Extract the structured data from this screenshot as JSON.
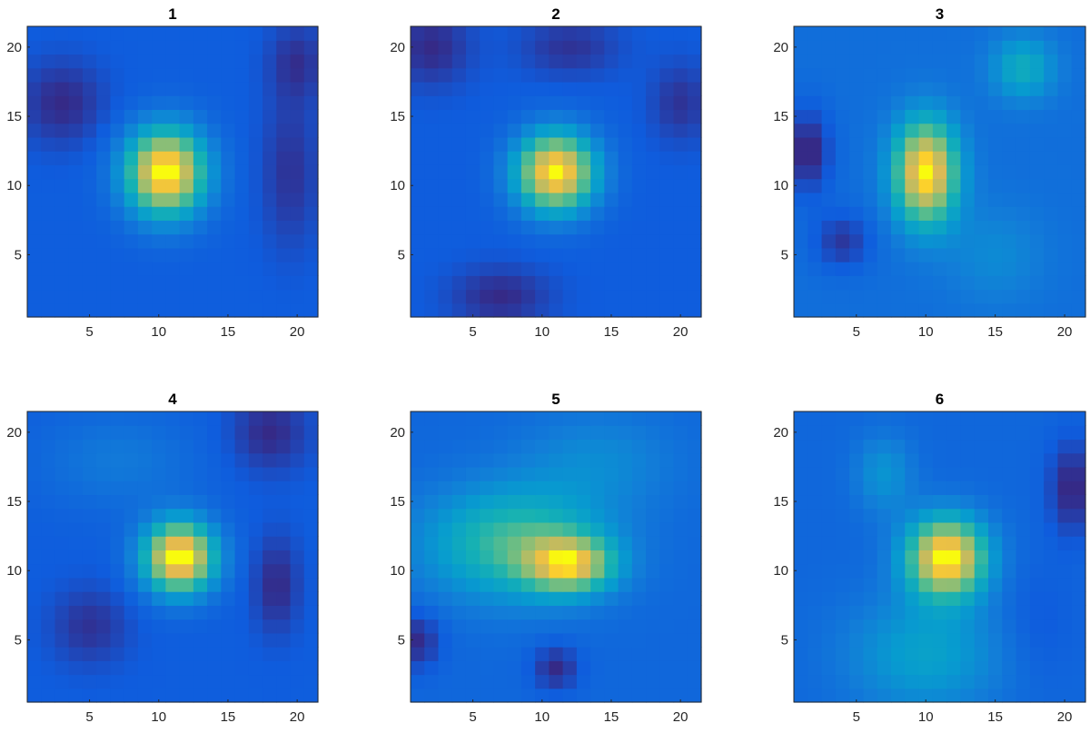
{
  "figure": {
    "background": "#ffffff",
    "colormap": "parula"
  },
  "chart_data": [
    {
      "type": "heatmap",
      "title": "1",
      "grid_size": 21,
      "xlim": [
        0.5,
        21.5
      ],
      "ylim": [
        0.5,
        21.5
      ],
      "xticks": [
        5,
        10,
        15,
        20
      ],
      "yticks": [
        5,
        10,
        15,
        20
      ],
      "features": [
        {
          "x": 10.5,
          "y": 11,
          "sx": 2.0,
          "sy": 2.2,
          "a": 0.85
        },
        {
          "x": 3,
          "y": 16,
          "sx": 2.2,
          "sy": 2.2,
          "a": -0.12
        },
        {
          "x": 19.5,
          "y": 11,
          "sx": 1.5,
          "sy": 4,
          "a": -0.1
        },
        {
          "x": 20,
          "y": 19,
          "sx": 1.5,
          "sy": 2,
          "a": -0.1
        }
      ]
    },
    {
      "type": "heatmap",
      "title": "2",
      "grid_size": 21,
      "xlim": [
        0.5,
        21.5
      ],
      "ylim": [
        0.5,
        21.5
      ],
      "xticks": [
        5,
        10,
        15,
        20
      ],
      "yticks": [
        5,
        10,
        15,
        20
      ],
      "features": [
        {
          "x": 11,
          "y": 11,
          "sx": 2.0,
          "sy": 2.0,
          "a": 0.85
        },
        {
          "x": 7,
          "y": 2,
          "sx": 2.5,
          "sy": 1.5,
          "a": -0.12
        },
        {
          "x": 2,
          "y": 20,
          "sx": 2,
          "sy": 2,
          "a": -0.12
        },
        {
          "x": 12,
          "y": 20,
          "sx": 2.5,
          "sy": 1.5,
          "a": -0.1
        },
        {
          "x": 20,
          "y": 16,
          "sx": 1.5,
          "sy": 2,
          "a": -0.1
        }
      ]
    },
    {
      "type": "heatmap",
      "title": "3",
      "grid_size": 21,
      "xlim": [
        0.5,
        21.5
      ],
      "ylim": [
        0.5,
        21.5
      ],
      "xticks": [
        5,
        10,
        15,
        20
      ],
      "yticks": [
        5,
        10,
        15,
        20
      ],
      "features": [
        {
          "x": 10,
          "y": 11,
          "sx": 1.6,
          "sy": 2.6,
          "a": 0.75
        },
        {
          "x": 17,
          "y": 18.5,
          "sx": 1.6,
          "sy": 1.6,
          "a": 0.25
        },
        {
          "x": 1.5,
          "y": 12.5,
          "sx": 1.2,
          "sy": 2.2,
          "a": -0.2
        },
        {
          "x": 4,
          "y": 6,
          "sx": 1.5,
          "sy": 1.5,
          "a": -0.15
        },
        {
          "x": 15,
          "y": 5,
          "sx": 2.5,
          "sy": 2.5,
          "a": 0.1
        }
      ]
    },
    {
      "type": "heatmap",
      "title": "4",
      "grid_size": 21,
      "xlim": [
        0.5,
        21.5
      ],
      "ylim": [
        0.5,
        21.5
      ],
      "xticks": [
        5,
        10,
        15,
        20
      ],
      "yticks": [
        5,
        10,
        15,
        20
      ],
      "features": [
        {
          "x": 11.5,
          "y": 11,
          "sx": 1.8,
          "sy": 1.8,
          "a": 0.85
        },
        {
          "x": 18,
          "y": 20,
          "sx": 2,
          "sy": 2,
          "a": -0.12
        },
        {
          "x": 18.5,
          "y": 9,
          "sx": 1.2,
          "sy": 2.5,
          "a": -0.12
        },
        {
          "x": 5,
          "y": 6,
          "sx": 2,
          "sy": 2,
          "a": -0.1
        },
        {
          "x": 7,
          "y": 18,
          "sx": 4,
          "sy": 2.5,
          "a": 0.1
        }
      ]
    },
    {
      "type": "heatmap",
      "title": "5",
      "grid_size": 21,
      "xlim": [
        0.5,
        21.5
      ],
      "ylim": [
        0.5,
        21.5
      ],
      "xticks": [
        5,
        10,
        15,
        20
      ],
      "yticks": [
        5,
        10,
        15,
        20
      ],
      "features": [
        {
          "x": 12,
          "y": 10.5,
          "sx": 2.2,
          "sy": 1.4,
          "a": 0.55
        },
        {
          "x": 8,
          "y": 12,
          "sx": 4.5,
          "sy": 2.8,
          "a": 0.38
        },
        {
          "x": 1,
          "y": 5,
          "sx": 1.2,
          "sy": 1.5,
          "a": -0.15
        },
        {
          "x": 11,
          "y": 3,
          "sx": 1.2,
          "sy": 1.2,
          "a": -0.15
        },
        {
          "x": 14,
          "y": 18,
          "sx": 4,
          "sy": 2.5,
          "a": 0.12
        }
      ]
    },
    {
      "type": "heatmap",
      "title": "6",
      "grid_size": 21,
      "xlim": [
        0.5,
        21.5
      ],
      "ylim": [
        0.5,
        21.5
      ],
      "xticks": [
        5,
        10,
        15,
        20
      ],
      "yticks": [
        5,
        10,
        15,
        20
      ],
      "features": [
        {
          "x": 11.5,
          "y": 11,
          "sx": 2.0,
          "sy": 2.0,
          "a": 0.72
        },
        {
          "x": 10,
          "y": 4,
          "sx": 4,
          "sy": 3,
          "a": 0.2
        },
        {
          "x": 7,
          "y": 17,
          "sx": 1.5,
          "sy": 2,
          "a": 0.15
        },
        {
          "x": 20.5,
          "y": 16,
          "sx": 1.2,
          "sy": 2.5,
          "a": -0.15
        },
        {
          "x": 18,
          "y": 6,
          "sx": 2,
          "sy": 3,
          "a": -0.05
        }
      ]
    }
  ]
}
